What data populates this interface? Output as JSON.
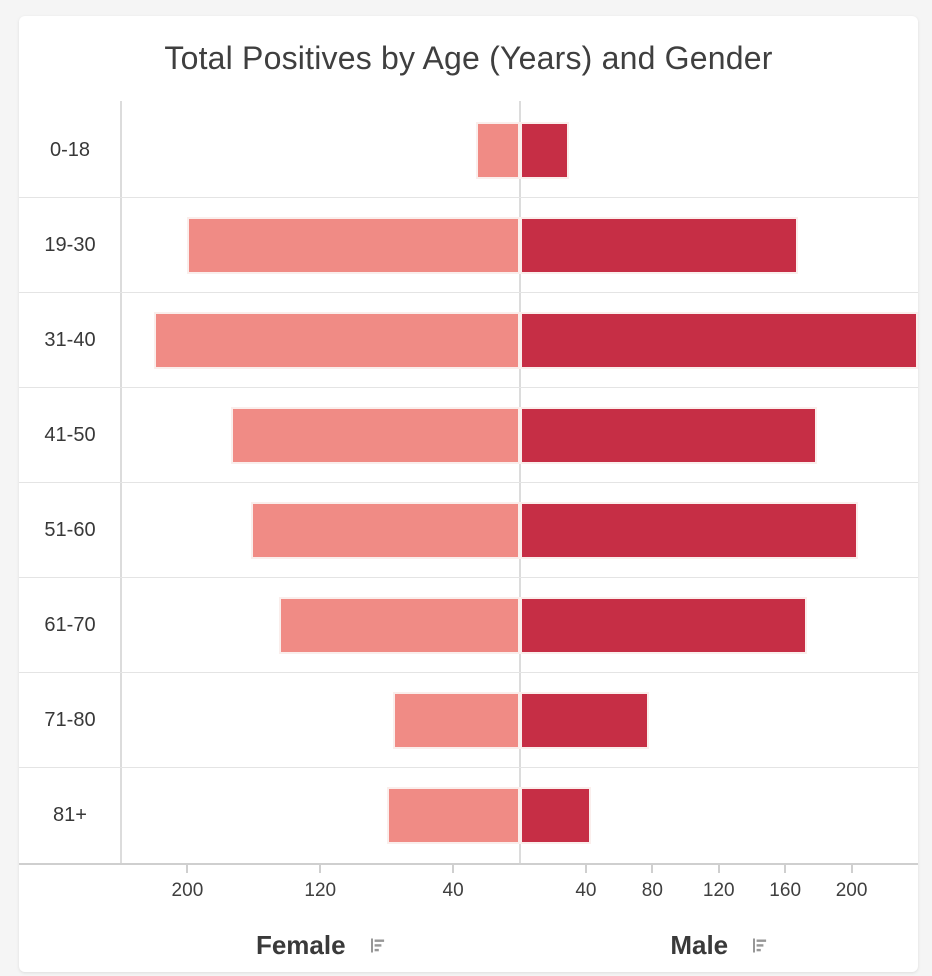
{
  "chart_data": {
    "type": "bar",
    "subtype": "population-pyramid-horizontal",
    "title": "Total Positives by Age (Years) and Gender",
    "categories": [
      "0-18",
      "19-30",
      "31-40",
      "41-50",
      "51-60",
      "61-70",
      "71-80",
      "81+"
    ],
    "series": [
      {
        "name": "Female",
        "color": "#f08b85",
        "values": [
          26,
          200,
          220,
          174,
          162,
          145,
          76,
          80
        ]
      },
      {
        "name": "Male",
        "color": "#c62e45",
        "values": [
          30,
          168,
          245,
          179,
          204,
          173,
          78,
          43
        ]
      }
    ],
    "axis": {
      "max_per_side": 240,
      "left_ticks": [
        200,
        120,
        40
      ],
      "right_ticks": [
        40,
        80,
        120,
        160,
        200
      ]
    },
    "legend_position": "bottom",
    "grid": "row-separators"
  },
  "icons": {
    "female_axis_menu": "bar-chart-icon",
    "male_axis_menu": "bar-chart-icon"
  },
  "colors": {
    "female_bar": "#f08b85",
    "male_bar": "#c62e45",
    "background": "#f5f5f5",
    "card": "#ffffff"
  }
}
